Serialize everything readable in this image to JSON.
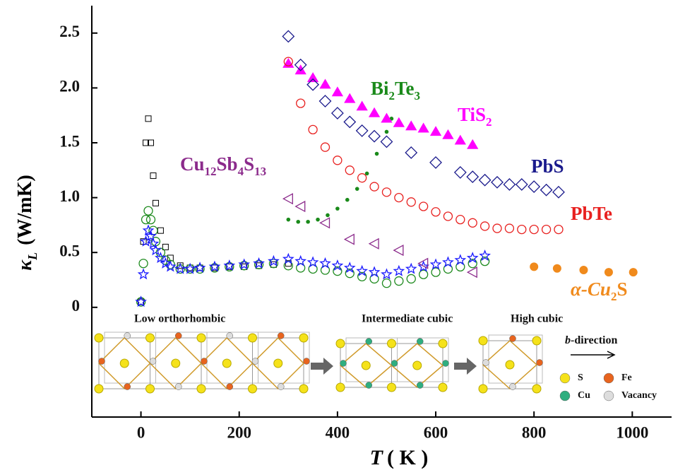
{
  "chart_data": {
    "type": "scatter",
    "ylabel": [
      "κ",
      "L",
      "(W/mK)"
    ],
    "xlabel": [
      "T",
      "( K )"
    ],
    "xlim": [
      -100,
      1080
    ],
    "xticks": [
      0,
      200,
      400,
      600,
      800,
      1000
    ],
    "ylim": [
      -1.0,
      2.75
    ],
    "yticks": [
      0,
      0.5,
      {
        "value": 1.0,
        "label": "1.0"
      },
      1.5,
      {
        "value": 2.0,
        "label": "2.0"
      },
      2.5
    ],
    "series": [
      {
        "color": "#000000",
        "marker": "square",
        "x": [
          0,
          5,
          10,
          15,
          20,
          25,
          30,
          40,
          50,
          60,
          80,
          100,
          120,
          150,
          180,
          210,
          240,
          270,
          300
        ],
        "values": [
          0.05,
          0.6,
          1.5,
          1.72,
          1.5,
          1.2,
          0.95,
          0.7,
          0.55,
          0.45,
          0.38,
          0.36,
          0.36,
          0.36,
          0.37,
          0.37,
          0.38,
          0.39,
          0.4
        ]
      },
      {
        "color": "#1e8a1e",
        "marker": "circle",
        "x": [
          0,
          5,
          10,
          15,
          20,
          25,
          30,
          40,
          50,
          60,
          80,
          100,
          120,
          150,
          180,
          210,
          240,
          270,
          300,
          325,
          350,
          375,
          400,
          425,
          450,
          475,
          500,
          525,
          550,
          575,
          600,
          625,
          650,
          675,
          700
        ],
        "values": [
          0.05,
          0.4,
          0.8,
          0.88,
          0.8,
          0.7,
          0.6,
          0.5,
          0.43,
          0.39,
          0.35,
          0.35,
          0.35,
          0.36,
          0.37,
          0.38,
          0.39,
          0.4,
          0.38,
          0.36,
          0.35,
          0.34,
          0.33,
          0.31,
          0.28,
          0.26,
          0.22,
          0.24,
          0.26,
          0.3,
          0.32,
          0.35,
          0.37,
          0.4,
          0.42
        ]
      },
      {
        "color": "#1a1aff",
        "marker": "star",
        "x": [
          0,
          5,
          10,
          15,
          20,
          25,
          30,
          40,
          50,
          60,
          80,
          100,
          120,
          150,
          180,
          210,
          240,
          270,
          300,
          325,
          350,
          375,
          400,
          425,
          450,
          475,
          500,
          525,
          550,
          575,
          600,
          625,
          650,
          675,
          700
        ],
        "values": [
          0.05,
          0.3,
          0.6,
          0.7,
          0.65,
          0.58,
          0.52,
          0.45,
          0.4,
          0.37,
          0.35,
          0.35,
          0.36,
          0.37,
          0.38,
          0.39,
          0.4,
          0.42,
          0.44,
          0.42,
          0.41,
          0.4,
          0.38,
          0.36,
          0.33,
          0.32,
          0.3,
          0.33,
          0.35,
          0.37,
          0.39,
          0.41,
          0.43,
          0.45,
          0.47
        ]
      },
      {
        "name": "Cu12Sb4S13",
        "color": "#8b2a8b",
        "marker": "left-triangle",
        "x": [
          300,
          325,
          375,
          425,
          475,
          525,
          575,
          675
        ],
        "values": [
          0.99,
          0.92,
          0.77,
          0.62,
          0.58,
          0.52,
          0.4,
          0.32
        ]
      },
      {
        "name": "Bi2Te3",
        "color": "#1a8a1a",
        "marker": "dot",
        "x": [
          300,
          320,
          340,
          360,
          380,
          400,
          420,
          440,
          460,
          480,
          500,
          510
        ],
        "values": [
          0.8,
          0.78,
          0.78,
          0.8,
          0.84,
          0.9,
          0.98,
          1.08,
          1.22,
          1.4,
          1.6,
          1.72
        ]
      },
      {
        "name": "TiS2",
        "color": "#ff00ff",
        "marker": "triangle",
        "x": [
          300,
          325,
          350,
          375,
          400,
          425,
          450,
          475,
          500,
          525,
          550,
          575,
          600,
          625,
          650,
          675
        ],
        "values": [
          2.22,
          2.16,
          2.09,
          2.03,
          1.96,
          1.9,
          1.83,
          1.77,
          1.72,
          1.68,
          1.65,
          1.63,
          1.6,
          1.57,
          1.52,
          1.48
        ]
      },
      {
        "name": "PbS",
        "color": "#1a1a8c",
        "marker": "diamond",
        "x": [
          300,
          325,
          350,
          375,
          400,
          425,
          450,
          475,
          500,
          550,
          600,
          650,
          675,
          700,
          725,
          750,
          775,
          800,
          825,
          850
        ],
        "values": [
          2.47,
          2.21,
          2.03,
          1.88,
          1.77,
          1.69,
          1.61,
          1.56,
          1.51,
          1.41,
          1.32,
          1.23,
          1.19,
          1.16,
          1.14,
          1.12,
          1.12,
          1.1,
          1.07,
          1.05
        ]
      },
      {
        "name": "PbTe",
        "color": "#e8201f",
        "marker": "circle",
        "x": [
          300,
          325,
          350,
          375,
          400,
          425,
          450,
          475,
          500,
          525,
          550,
          575,
          600,
          625,
          650,
          675,
          700,
          725,
          750,
          775,
          800,
          825,
          850
        ],
        "values": [
          2.24,
          1.86,
          1.62,
          1.46,
          1.34,
          1.25,
          1.18,
          1.1,
          1.05,
          1.0,
          0.96,
          0.92,
          0.87,
          0.83,
          0.8,
          0.77,
          0.74,
          0.72,
          0.72,
          0.71,
          0.71,
          0.71,
          0.71
        ]
      },
      {
        "name": "α-Cu2S",
        "color": "#f08a1c",
        "marker": "ball",
        "x": [
          800,
          847,
          901,
          952,
          1002
        ],
        "values": [
          0.37,
          0.355,
          0.34,
          0.32,
          0.32
        ]
      }
    ]
  },
  "inset": {
    "phases": [
      "Low orthorhombic",
      "Intermediate cubic",
      "High cubic"
    ],
    "direction": [
      "b",
      "-direction"
    ],
    "legend": [
      "S",
      "Fe",
      "Cu",
      "Vacancy"
    ]
  }
}
